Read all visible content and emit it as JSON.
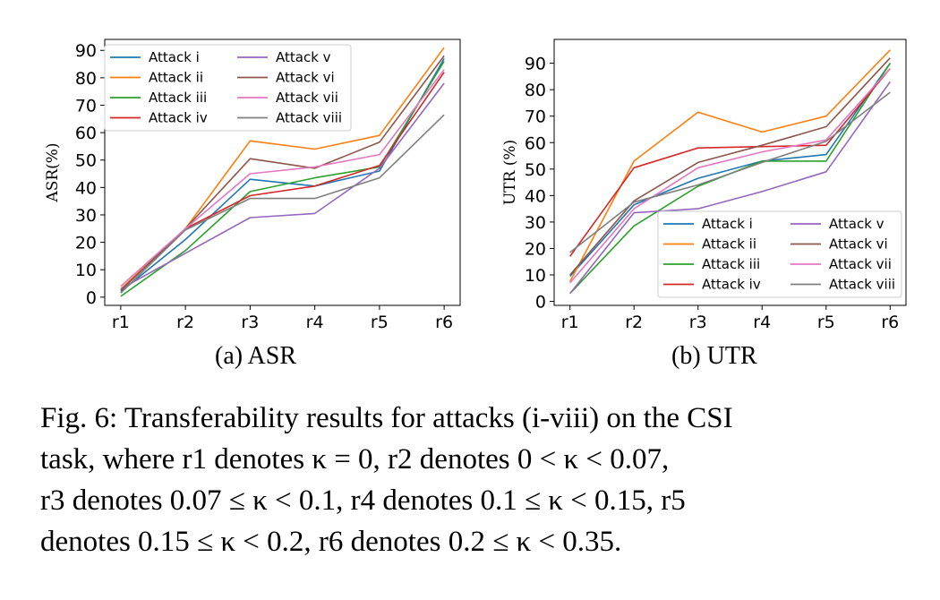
{
  "chart_data": [
    {
      "type": "line",
      "subcaption": "(a) ASR",
      "ylabel": "ASR(%)",
      "xlabel": "",
      "categories": [
        "r1",
        "r2",
        "r3",
        "r4",
        "r5",
        "r6"
      ],
      "yticks": [
        0,
        10,
        20,
        30,
        40,
        50,
        60,
        70,
        80,
        90
      ],
      "ylim": [
        -3,
        94
      ],
      "legend_position": "upper-left",
      "series": [
        {
          "name": "Attack i",
          "color": "#1f77b4",
          "values": [
            2,
            21,
            43,
            40.5,
            46,
            87
          ]
        },
        {
          "name": "Attack ii",
          "color": "#ff7f0e",
          "values": [
            3,
            25,
            57,
            54,
            59,
            91
          ]
        },
        {
          "name": "Attack iii",
          "color": "#2ca02c",
          "values": [
            0.3,
            17,
            38.5,
            43.5,
            47.5,
            86
          ]
        },
        {
          "name": "Attack iv",
          "color": "#d62728",
          "values": [
            2.5,
            25,
            37,
            40.5,
            48,
            82
          ]
        },
        {
          "name": "Attack v",
          "color": "#9467bd",
          "values": [
            3,
            16,
            29,
            30.5,
            47,
            78
          ]
        },
        {
          "name": "Attack vi",
          "color": "#8c564b",
          "values": [
            2.5,
            25,
            50.5,
            47,
            56.5,
            88
          ]
        },
        {
          "name": "Attack vii",
          "color": "#e377c2",
          "values": [
            4,
            25,
            45,
            47.5,
            52,
            83
          ]
        },
        {
          "name": "Attack viii",
          "color": "#7f7f7f",
          "values": [
            1.5,
            24.5,
            36,
            36,
            43.5,
            66.5
          ]
        }
      ]
    },
    {
      "type": "line",
      "subcaption": "(b) UTR",
      "ylabel": "UTR (%)",
      "xlabel": "",
      "categories": [
        "r1",
        "r2",
        "r3",
        "r4",
        "r5",
        "r6"
      ],
      "yticks": [
        0,
        10,
        20,
        30,
        40,
        50,
        60,
        70,
        80,
        90
      ],
      "ylim": [
        -1.5,
        99
      ],
      "legend_position": "lower-right",
      "series": [
        {
          "name": "Attack i",
          "color": "#1f77b4",
          "values": [
            9.5,
            36.5,
            46.5,
            53,
            55.5,
            90
          ]
        },
        {
          "name": "Attack ii",
          "color": "#ff7f0e",
          "values": [
            7.5,
            53,
            71.5,
            64,
            70,
            95
          ]
        },
        {
          "name": "Attack iii",
          "color": "#2ca02c",
          "values": [
            3,
            28.5,
            43.5,
            53,
            53,
            90
          ]
        },
        {
          "name": "Attack iv",
          "color": "#d62728",
          "values": [
            17,
            50.5,
            58,
            58.5,
            59,
            88
          ]
        },
        {
          "name": "Attack v",
          "color": "#9467bd",
          "values": [
            3,
            33.5,
            35,
            41.5,
            49,
            83
          ]
        },
        {
          "name": "Attack vi",
          "color": "#8c564b",
          "values": [
            10,
            38,
            52.5,
            59,
            66,
            92
          ]
        },
        {
          "name": "Attack vii",
          "color": "#e377c2",
          "values": [
            7,
            35,
            50.5,
            56.5,
            61,
            88
          ]
        },
        {
          "name": "Attack viii",
          "color": "#7f7f7f",
          "values": [
            18.5,
            37.5,
            44,
            52.5,
            60.5,
            79
          ]
        }
      ]
    }
  ],
  "caption_line1": "Fig. 6: Transferability results for attacks (i-viii) on the CSI",
  "caption_line2": "task, where r1 denotes κ = 0, r2 denotes 0 < κ < 0.07,",
  "caption_line3": "r3 denotes 0.07 ≤ κ < 0.1, r4 denotes 0.1 ≤ κ < 0.15, r5",
  "caption_line4": "denotes 0.15 ≤ κ < 0.2, r6 denotes 0.2 ≤ κ < 0.35."
}
